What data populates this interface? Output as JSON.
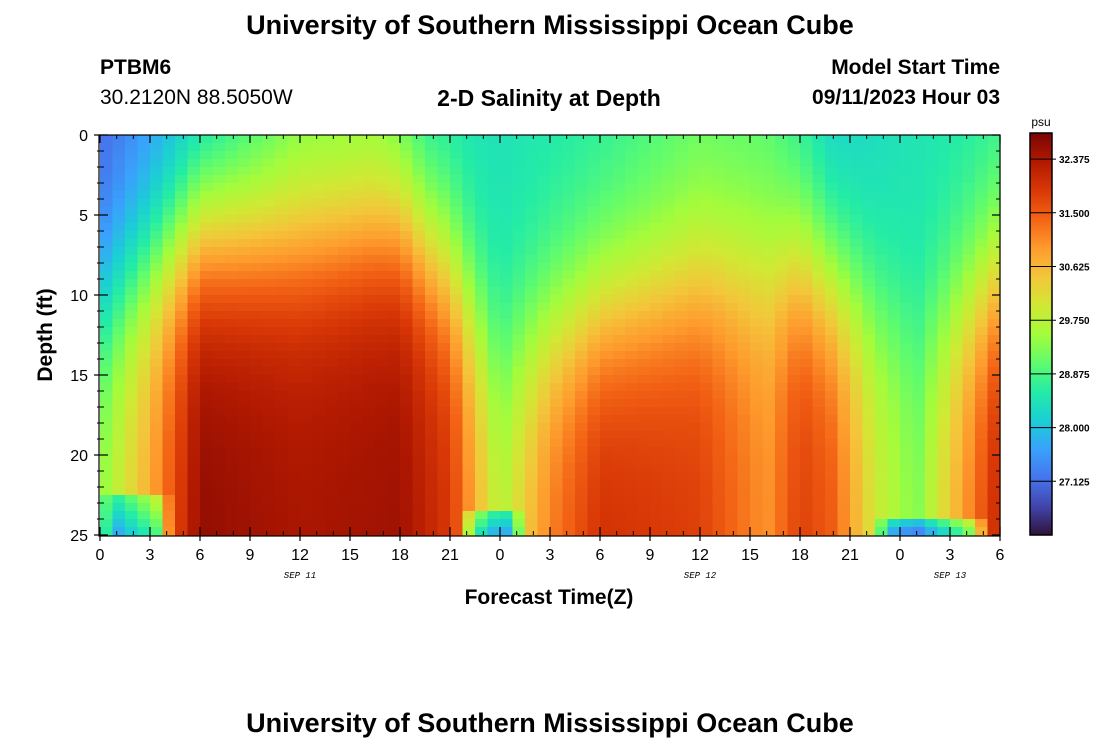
{
  "header": {
    "title": "University of Southern Mississippi Ocean Cube",
    "station_id": "PTBM6",
    "station_coords": "30.2120N  88.5050W",
    "model_start_label": "Model Start Time",
    "model_start_value": "09/11/2023 Hour 03"
  },
  "footer": {
    "title": "University of Southern Mississippi Ocean Cube"
  },
  "chart_data": {
    "type": "heatmap",
    "title": "2-D Salinity at Depth",
    "xlabel": "Forecast Time(Z)",
    "ylabel": "Depth (ft)",
    "x_range_hours": [
      0,
      54
    ],
    "y_range_ft": [
      0,
      25
    ],
    "x_ticks": [
      "0",
      "3",
      "6",
      "9",
      "12",
      "15",
      "18",
      "21",
      "0",
      "3",
      "6",
      "9",
      "12",
      "15",
      "18",
      "21",
      "0",
      "3",
      "6"
    ],
    "y_ticks": [
      "0",
      "5",
      "10",
      "15",
      "20",
      "25"
    ],
    "date_labels": [
      {
        "text": "SEP 11",
        "hour": 12
      },
      {
        "text": "SEP 12",
        "hour": 36
      },
      {
        "text": "SEP 13",
        "hour": 51
      }
    ],
    "colorbar": {
      "unit": "psu",
      "min": 26.25,
      "max": 32.8,
      "ticks": [
        "32.375",
        "31.500",
        "30.625",
        "29.750",
        "28.875",
        "28.000",
        "27.125"
      ],
      "tick_values": [
        32.375,
        31.5,
        30.625,
        29.75,
        28.875,
        28.0,
        27.125
      ],
      "colors": [
        "#30123b",
        "#4145ab",
        "#4675ed",
        "#39a2fc",
        "#1bcfd4",
        "#24eca6",
        "#61fc6c",
        "#a4fc3b",
        "#d1e834",
        "#f3c63a",
        "#fe9b2d",
        "#f36315",
        "#d93806",
        "#b11901",
        "#7a0403"
      ]
    },
    "surface_profile": [
      {
        "hour": 0,
        "psu": 27.0
      },
      {
        "hour": 6,
        "psu": 27.9
      },
      {
        "hour": 12,
        "psu": 29.0
      },
      {
        "hour": 16.5,
        "psu": 29.0
      },
      {
        "hour": 19.5,
        "psu": 28.4
      },
      {
        "hour": 24,
        "psu": 28.4
      },
      {
        "hour": 30,
        "psu": 28.6
      },
      {
        "hour": 36,
        "psu": 29.0
      },
      {
        "hour": 40,
        "psu": 28.9
      },
      {
        "hour": 44,
        "psu": 28.1
      },
      {
        "hour": 48,
        "psu": 28.4
      },
      {
        "hour": 54,
        "psu": 28.6
      }
    ],
    "deep_profile": [
      {
        "hour": 0,
        "psu": 29.4
      },
      {
        "hour": 3,
        "psu": 30.8
      },
      {
        "hour": 6,
        "psu": 32.6
      },
      {
        "hour": 12,
        "psu": 32.4
      },
      {
        "hour": 18,
        "psu": 32.5
      },
      {
        "hour": 21,
        "psu": 31.9
      },
      {
        "hour": 24,
        "psu": 29.7
      },
      {
        "hour": 27,
        "psu": 31.2
      },
      {
        "hour": 30,
        "psu": 32.0
      },
      {
        "hour": 36,
        "psu": 31.8
      },
      {
        "hour": 40,
        "psu": 31.0
      },
      {
        "hour": 42,
        "psu": 31.8
      },
      {
        "hour": 44,
        "psu": 31.5
      },
      {
        "hour": 46.5,
        "psu": 30.0
      },
      {
        "hour": 49,
        "psu": 29.3
      },
      {
        "hour": 54,
        "psu": 32.2
      }
    ],
    "halocline_depth_ft": [
      {
        "hour": 0,
        "depth": 10.5
      },
      {
        "hour": 6,
        "depth": 6.0
      },
      {
        "hour": 12,
        "depth": 6.5
      },
      {
        "hour": 18,
        "depth": 5.5
      },
      {
        "hour": 21,
        "depth": 8.5
      },
      {
        "hour": 24,
        "depth": 14.0
      },
      {
        "hour": 30,
        "depth": 11.0
      },
      {
        "hour": 36,
        "depth": 9.0
      },
      {
        "hour": 42,
        "depth": 8.0
      },
      {
        "hour": 46.5,
        "depth": 11.0
      },
      {
        "hour": 49,
        "depth": 13.0
      },
      {
        "hour": 54,
        "depth": 9.0
      }
    ],
    "bottom_fresh_patches": [
      {
        "hour_start": 0,
        "hour_end": 4.3,
        "depth_from_ft": 22.5
      },
      {
        "hour_start": 21.6,
        "hour_end": 25.5,
        "depth_from_ft": 23.5
      },
      {
        "hour_start": 46.2,
        "hour_end": 53.5,
        "depth_from_ft": 24.0
      }
    ]
  }
}
